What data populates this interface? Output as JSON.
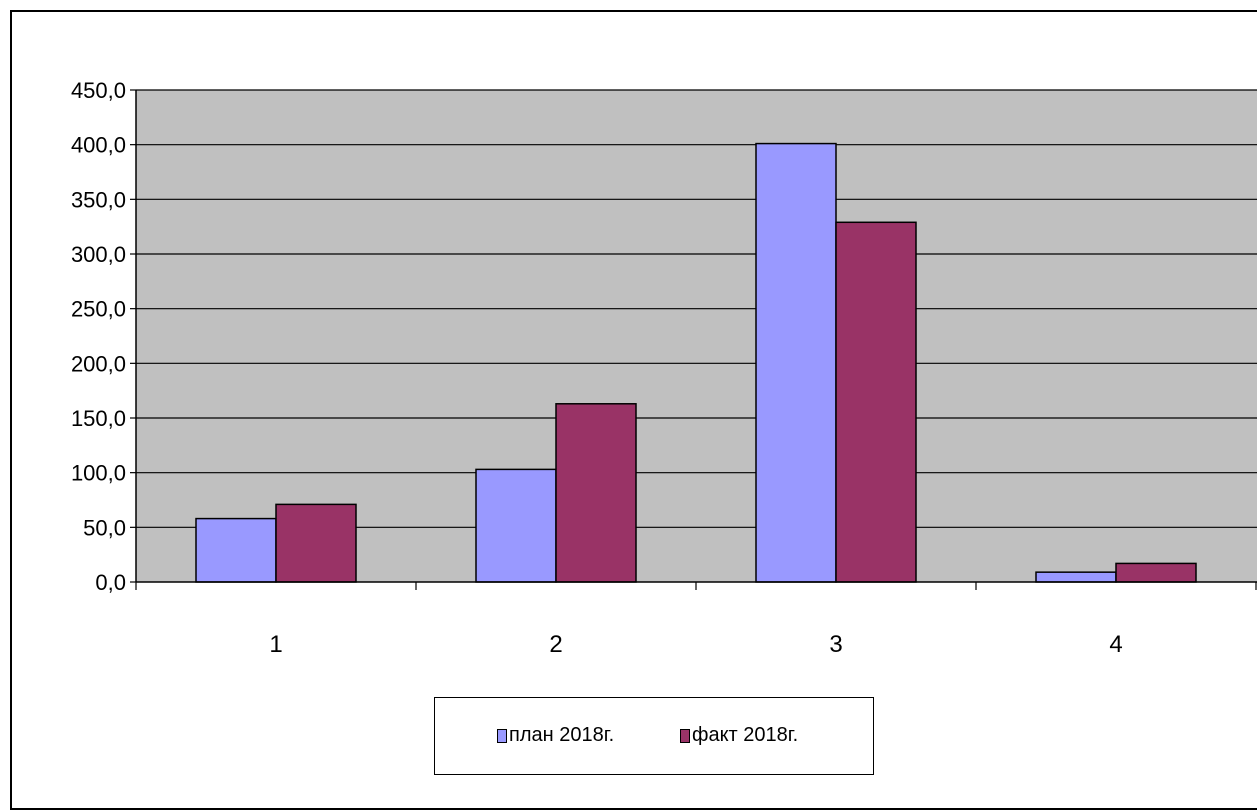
{
  "chart_data": {
    "type": "bar",
    "title": "",
    "xlabel": "",
    "ylabel": "",
    "categories": [
      "1",
      "2",
      "3",
      "4"
    ],
    "series": [
      {
        "name": "план 2018г.",
        "values": [
          58,
          103,
          401,
          9
        ],
        "color": "#9999ff"
      },
      {
        "name": "факт 2018г.",
        "values": [
          71,
          163,
          329,
          17
        ],
        "color": "#993366"
      }
    ],
    "ylim": [
      0,
      450
    ],
    "yticks": [
      "0,0",
      "50,0",
      "100,0",
      "150,0",
      "200,0",
      "250,0",
      "300,0",
      "350,0",
      "400,0",
      "450,0"
    ],
    "grid": true,
    "plot_background": "#c0c0c0",
    "legend_position": "bottom"
  }
}
